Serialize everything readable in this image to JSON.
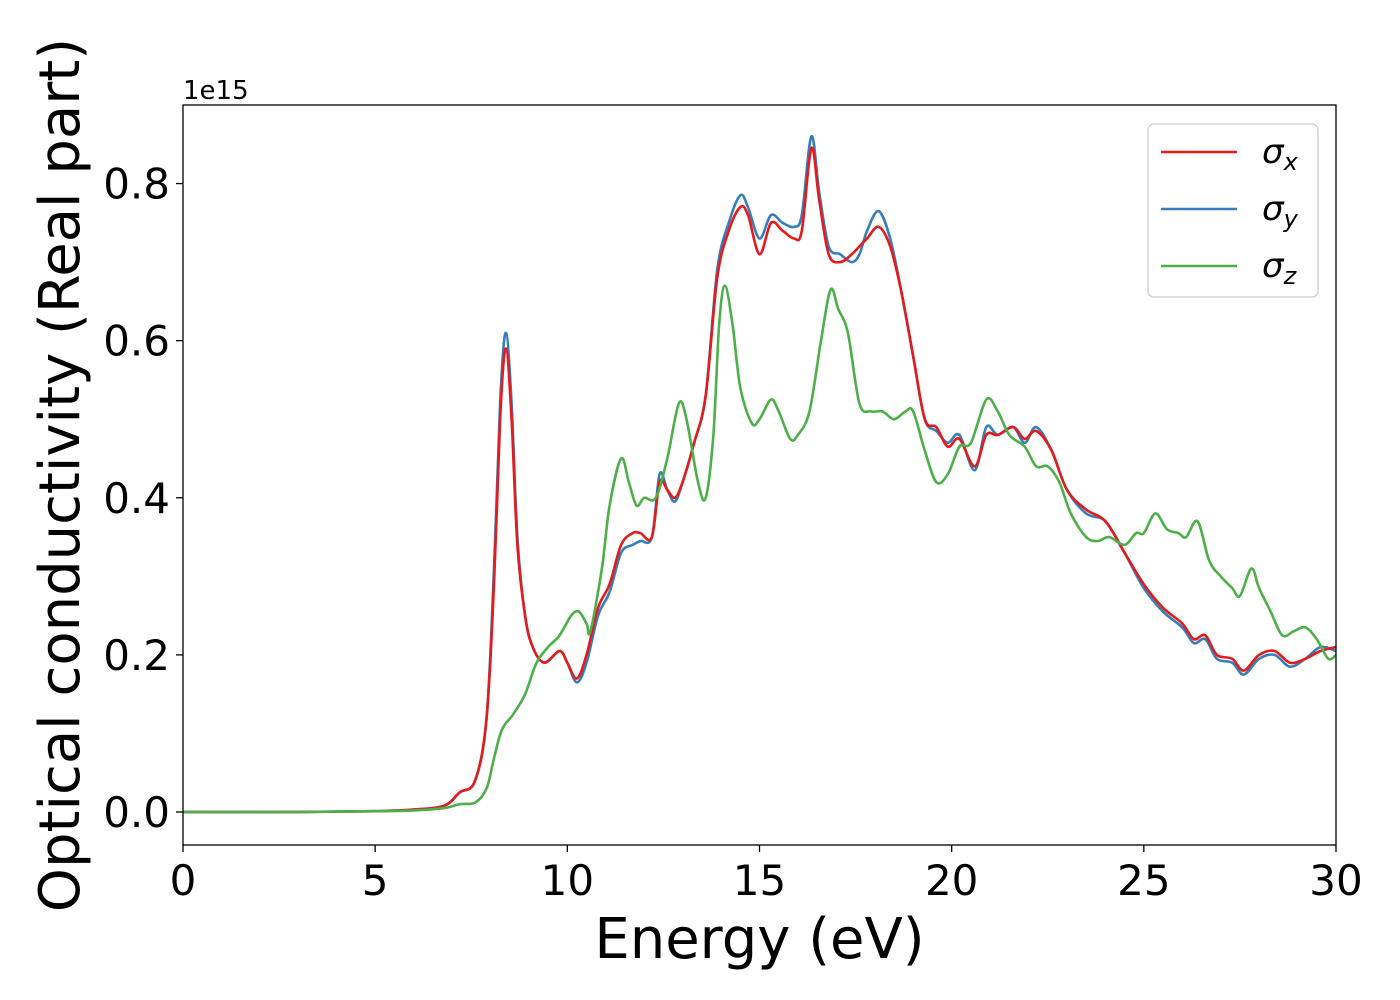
{
  "chart_data": {
    "type": "line",
    "xlabel": "Energy (eV)",
    "ylabel": "Optical conductivity (Real part)",
    "offset_text": "1e15",
    "xlim": [
      0,
      30
    ],
    "ylim": [
      -0.042,
      0.9
    ],
    "xticks": [
      0,
      5,
      10,
      15,
      20,
      25,
      30
    ],
    "xtick_labels": [
      "0",
      "5",
      "10",
      "15",
      "20",
      "25",
      "30"
    ],
    "yticks": [
      0.0,
      0.2,
      0.4,
      0.6,
      0.8
    ],
    "ytick_labels": [
      "0.0",
      "0.2",
      "0.4",
      "0.6",
      "0.8"
    ],
    "grid": false,
    "legend": "top-right",
    "series": [
      {
        "name": "σx",
        "label_base": "σ",
        "label_sub": "x",
        "color": "#e41a1c",
        "points": [
          [
            0,
            0.0
          ],
          [
            3,
            0.0
          ],
          [
            5,
            0.001
          ],
          [
            6,
            0.003
          ],
          [
            6.8,
            0.008
          ],
          [
            7.2,
            0.025
          ],
          [
            7.6,
            0.04
          ],
          [
            7.9,
            0.12
          ],
          [
            8.1,
            0.3
          ],
          [
            8.25,
            0.5
          ],
          [
            8.4,
            0.59
          ],
          [
            8.55,
            0.5
          ],
          [
            8.7,
            0.34
          ],
          [
            8.9,
            0.25
          ],
          [
            9.1,
            0.21
          ],
          [
            9.4,
            0.19
          ],
          [
            9.8,
            0.205
          ],
          [
            10.0,
            0.19
          ],
          [
            10.25,
            0.17
          ],
          [
            10.5,
            0.2
          ],
          [
            10.8,
            0.26
          ],
          [
            11.1,
            0.29
          ],
          [
            11.4,
            0.34
          ],
          [
            11.7,
            0.355
          ],
          [
            11.9,
            0.355
          ],
          [
            12.2,
            0.35
          ],
          [
            12.4,
            0.42
          ],
          [
            12.6,
            0.41
          ],
          [
            12.8,
            0.4
          ],
          [
            13.0,
            0.42
          ],
          [
            13.3,
            0.47
          ],
          [
            13.6,
            0.53
          ],
          [
            13.9,
            0.68
          ],
          [
            14.2,
            0.74
          ],
          [
            14.5,
            0.77
          ],
          [
            14.7,
            0.76
          ],
          [
            15.0,
            0.71
          ],
          [
            15.3,
            0.75
          ],
          [
            15.6,
            0.74
          ],
          [
            15.9,
            0.73
          ],
          [
            16.1,
            0.74
          ],
          [
            16.35,
            0.845
          ],
          [
            16.55,
            0.78
          ],
          [
            16.8,
            0.71
          ],
          [
            17.1,
            0.7
          ],
          [
            17.4,
            0.71
          ],
          [
            17.6,
            0.72
          ],
          [
            17.8,
            0.73
          ],
          [
            18.1,
            0.745
          ],
          [
            18.4,
            0.72
          ],
          [
            18.7,
            0.66
          ],
          [
            19.0,
            0.58
          ],
          [
            19.3,
            0.5
          ],
          [
            19.6,
            0.49
          ],
          [
            19.9,
            0.465
          ],
          [
            20.2,
            0.475
          ],
          [
            20.6,
            0.44
          ],
          [
            20.9,
            0.48
          ],
          [
            21.2,
            0.48
          ],
          [
            21.6,
            0.49
          ],
          [
            21.9,
            0.475
          ],
          [
            22.2,
            0.485
          ],
          [
            22.6,
            0.46
          ],
          [
            23.0,
            0.41
          ],
          [
            23.5,
            0.385
          ],
          [
            24.0,
            0.37
          ],
          [
            24.5,
            0.33
          ],
          [
            25.0,
            0.29
          ],
          [
            25.5,
            0.26
          ],
          [
            26.0,
            0.24
          ],
          [
            26.3,
            0.22
          ],
          [
            26.6,
            0.225
          ],
          [
            26.9,
            0.2
          ],
          [
            27.3,
            0.195
          ],
          [
            27.6,
            0.18
          ],
          [
            28.0,
            0.2
          ],
          [
            28.4,
            0.205
          ],
          [
            28.8,
            0.19
          ],
          [
            29.2,
            0.195
          ],
          [
            29.6,
            0.205
          ],
          [
            30.0,
            0.21
          ]
        ]
      },
      {
        "name": "σy",
        "label_base": "σ",
        "label_sub": "y",
        "color": "#377eb8",
        "points": [
          [
            0,
            0.0
          ],
          [
            3,
            0.0
          ],
          [
            5,
            0.001
          ],
          [
            6,
            0.003
          ],
          [
            6.8,
            0.008
          ],
          [
            7.2,
            0.025
          ],
          [
            7.6,
            0.04
          ],
          [
            7.9,
            0.12
          ],
          [
            8.1,
            0.32
          ],
          [
            8.25,
            0.52
          ],
          [
            8.4,
            0.61
          ],
          [
            8.55,
            0.52
          ],
          [
            8.7,
            0.35
          ],
          [
            8.9,
            0.25
          ],
          [
            9.1,
            0.21
          ],
          [
            9.4,
            0.19
          ],
          [
            9.8,
            0.205
          ],
          [
            10.0,
            0.19
          ],
          [
            10.25,
            0.165
          ],
          [
            10.5,
            0.19
          ],
          [
            10.8,
            0.25
          ],
          [
            11.1,
            0.28
          ],
          [
            11.4,
            0.33
          ],
          [
            11.7,
            0.34
          ],
          [
            11.9,
            0.345
          ],
          [
            12.2,
            0.35
          ],
          [
            12.4,
            0.43
          ],
          [
            12.6,
            0.41
          ],
          [
            12.8,
            0.395
          ],
          [
            13.0,
            0.42
          ],
          [
            13.3,
            0.47
          ],
          [
            13.6,
            0.53
          ],
          [
            13.9,
            0.69
          ],
          [
            14.2,
            0.75
          ],
          [
            14.5,
            0.785
          ],
          [
            14.7,
            0.77
          ],
          [
            15.0,
            0.73
          ],
          [
            15.3,
            0.76
          ],
          [
            15.6,
            0.75
          ],
          [
            15.9,
            0.745
          ],
          [
            16.1,
            0.76
          ],
          [
            16.35,
            0.86
          ],
          [
            16.55,
            0.79
          ],
          [
            16.8,
            0.72
          ],
          [
            17.1,
            0.71
          ],
          [
            17.4,
            0.7
          ],
          [
            17.6,
            0.71
          ],
          [
            17.8,
            0.74
          ],
          [
            18.1,
            0.765
          ],
          [
            18.4,
            0.73
          ],
          [
            18.7,
            0.66
          ],
          [
            19.0,
            0.58
          ],
          [
            19.3,
            0.5
          ],
          [
            19.6,
            0.485
          ],
          [
            19.9,
            0.47
          ],
          [
            20.2,
            0.48
          ],
          [
            20.6,
            0.435
          ],
          [
            20.9,
            0.49
          ],
          [
            21.2,
            0.48
          ],
          [
            21.6,
            0.49
          ],
          [
            21.9,
            0.47
          ],
          [
            22.2,
            0.49
          ],
          [
            22.6,
            0.46
          ],
          [
            23.0,
            0.41
          ],
          [
            23.5,
            0.38
          ],
          [
            24.0,
            0.37
          ],
          [
            24.5,
            0.33
          ],
          [
            25.0,
            0.285
          ],
          [
            25.5,
            0.255
          ],
          [
            26.0,
            0.235
          ],
          [
            26.3,
            0.215
          ],
          [
            26.6,
            0.22
          ],
          [
            26.9,
            0.195
          ],
          [
            27.3,
            0.19
          ],
          [
            27.6,
            0.175
          ],
          [
            28.0,
            0.195
          ],
          [
            28.4,
            0.2
          ],
          [
            28.8,
            0.185
          ],
          [
            29.2,
            0.195
          ],
          [
            29.6,
            0.21
          ],
          [
            30.0,
            0.205
          ]
        ]
      },
      {
        "name": "σz",
        "label_base": "σ",
        "label_sub": "z",
        "color": "#4daf4a",
        "points": [
          [
            0,
            0.0
          ],
          [
            3,
            0.0
          ],
          [
            5,
            0.001
          ],
          [
            6,
            0.002
          ],
          [
            6.8,
            0.005
          ],
          [
            7.2,
            0.01
          ],
          [
            7.6,
            0.012
          ],
          [
            7.9,
            0.03
          ],
          [
            8.1,
            0.07
          ],
          [
            8.3,
            0.105
          ],
          [
            8.6,
            0.125
          ],
          [
            8.9,
            0.15
          ],
          [
            9.2,
            0.19
          ],
          [
            9.5,
            0.21
          ],
          [
            9.8,
            0.225
          ],
          [
            10.1,
            0.25
          ],
          [
            10.3,
            0.255
          ],
          [
            10.5,
            0.24
          ],
          [
            10.6,
            0.23
          ],
          [
            10.9,
            0.31
          ],
          [
            11.1,
            0.39
          ],
          [
            11.4,
            0.45
          ],
          [
            11.6,
            0.42
          ],
          [
            11.8,
            0.39
          ],
          [
            12.0,
            0.4
          ],
          [
            12.3,
            0.4
          ],
          [
            12.6,
            0.45
          ],
          [
            12.9,
            0.52
          ],
          [
            13.1,
            0.5
          ],
          [
            13.4,
            0.42
          ],
          [
            13.6,
            0.4
          ],
          [
            13.8,
            0.48
          ],
          [
            13.95,
            0.62
          ],
          [
            14.1,
            0.67
          ],
          [
            14.3,
            0.62
          ],
          [
            14.5,
            0.54
          ],
          [
            14.8,
            0.495
          ],
          [
            15.0,
            0.5
          ],
          [
            15.3,
            0.525
          ],
          [
            15.5,
            0.51
          ],
          [
            15.8,
            0.475
          ],
          [
            16.0,
            0.48
          ],
          [
            16.3,
            0.51
          ],
          [
            16.6,
            0.6
          ],
          [
            16.85,
            0.665
          ],
          [
            17.05,
            0.64
          ],
          [
            17.3,
            0.61
          ],
          [
            17.6,
            0.52
          ],
          [
            17.9,
            0.51
          ],
          [
            18.2,
            0.51
          ],
          [
            18.5,
            0.5
          ],
          [
            18.8,
            0.51
          ],
          [
            19.0,
            0.51
          ],
          [
            19.3,
            0.46
          ],
          [
            19.6,
            0.42
          ],
          [
            19.9,
            0.43
          ],
          [
            20.2,
            0.465
          ],
          [
            20.5,
            0.47
          ],
          [
            20.9,
            0.525
          ],
          [
            21.2,
            0.51
          ],
          [
            21.5,
            0.48
          ],
          [
            21.9,
            0.465
          ],
          [
            22.2,
            0.44
          ],
          [
            22.5,
            0.44
          ],
          [
            22.8,
            0.42
          ],
          [
            23.1,
            0.38
          ],
          [
            23.5,
            0.35
          ],
          [
            23.8,
            0.345
          ],
          [
            24.1,
            0.35
          ],
          [
            24.5,
            0.34
          ],
          [
            24.8,
            0.355
          ],
          [
            25.0,
            0.355
          ],
          [
            25.3,
            0.38
          ],
          [
            25.6,
            0.36
          ],
          [
            25.9,
            0.355
          ],
          [
            26.1,
            0.35
          ],
          [
            26.4,
            0.37
          ],
          [
            26.7,
            0.32
          ],
          [
            27.0,
            0.3
          ],
          [
            27.3,
            0.285
          ],
          [
            27.5,
            0.275
          ],
          [
            27.8,
            0.31
          ],
          [
            28.0,
            0.285
          ],
          [
            28.3,
            0.255
          ],
          [
            28.6,
            0.225
          ],
          [
            28.9,
            0.23
          ],
          [
            29.2,
            0.235
          ],
          [
            29.5,
            0.22
          ],
          [
            29.8,
            0.195
          ],
          [
            30.0,
            0.2
          ]
        ]
      }
    ]
  }
}
